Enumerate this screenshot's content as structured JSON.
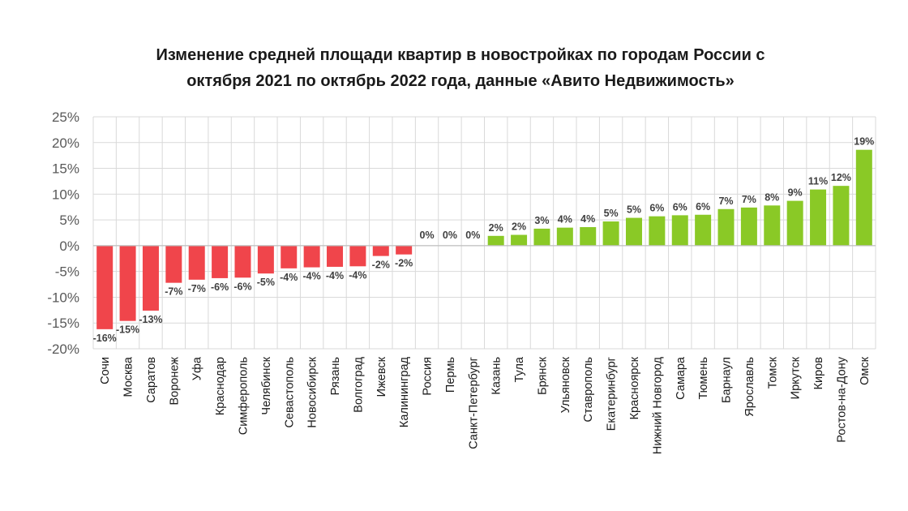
{
  "chart_data": {
    "type": "bar",
    "title_lines": [
      "Изменение средней площади квартир в новостройках по городам России с",
      "октября 2021 по октябрь 2022 года, данные «Авито Недвижимость»"
    ],
    "categories": [
      "Сочи",
      "Москва",
      "Саратов",
      "Воронеж",
      "Уфа",
      "Краснодар",
      "Симферополь",
      "Челябинск",
      "Севастополь",
      "Новосибирск",
      "Рязань",
      "Волгоград",
      "Ижевск",
      "Калининград",
      "Россия",
      "Пермь",
      "Санкт-Петербург",
      "Казань",
      "Тула",
      "Брянск",
      "Ульяновск",
      "Ставрополь",
      "Екатеринбург",
      "Красноярск",
      "Нижний Новгород",
      "Самара",
      "Тюмень",
      "Барнаул",
      "Ярославль",
      "Томск",
      "Иркутск",
      "Киров",
      "Ростов-на-Дону",
      "Омск"
    ],
    "values": [
      -16.2,
      -14.6,
      -12.6,
      -7.2,
      -6.6,
      -6.3,
      -6.2,
      -5.4,
      -4.4,
      -4.2,
      -4.1,
      -4.0,
      -2.0,
      -1.7,
      0,
      0,
      0,
      1.9,
      2.1,
      3.3,
      3.5,
      3.6,
      4.7,
      5.4,
      5.7,
      5.9,
      6.0,
      7.1,
      7.4,
      7.8,
      8.7,
      10.9,
      11.6,
      18.6
    ],
    "data_labels": [
      "-16%",
      "-15%",
      "-13%",
      "-7%",
      "-7%",
      "-6%",
      "-6%",
      "-5%",
      "-4%",
      "-4%",
      "-4%",
      "-4%",
      "-2%",
      "-2%",
      "0%",
      "0%",
      "0%",
      "2%",
      "2%",
      "3%",
      "4%",
      "4%",
      "5%",
      "5%",
      "6%",
      "6%",
      "6%",
      "7%",
      "7%",
      "8%",
      "9%",
      "11%",
      "12%",
      "19%"
    ],
    "ylim": [
      -20,
      25
    ],
    "yticks": [
      "25%",
      "20%",
      "15%",
      "10%",
      "5%",
      "0%",
      "-5%",
      "-10%",
      "-15%",
      "-20%"
    ],
    "ytick_values": [
      25,
      20,
      15,
      10,
      5,
      0,
      -5,
      -10,
      -15,
      -20
    ],
    "grid": true,
    "colors": {
      "negative": "#f0454b",
      "positive": "#8ac926",
      "grid": "#d9d9d9",
      "axis": "#bfbfbf"
    }
  }
}
